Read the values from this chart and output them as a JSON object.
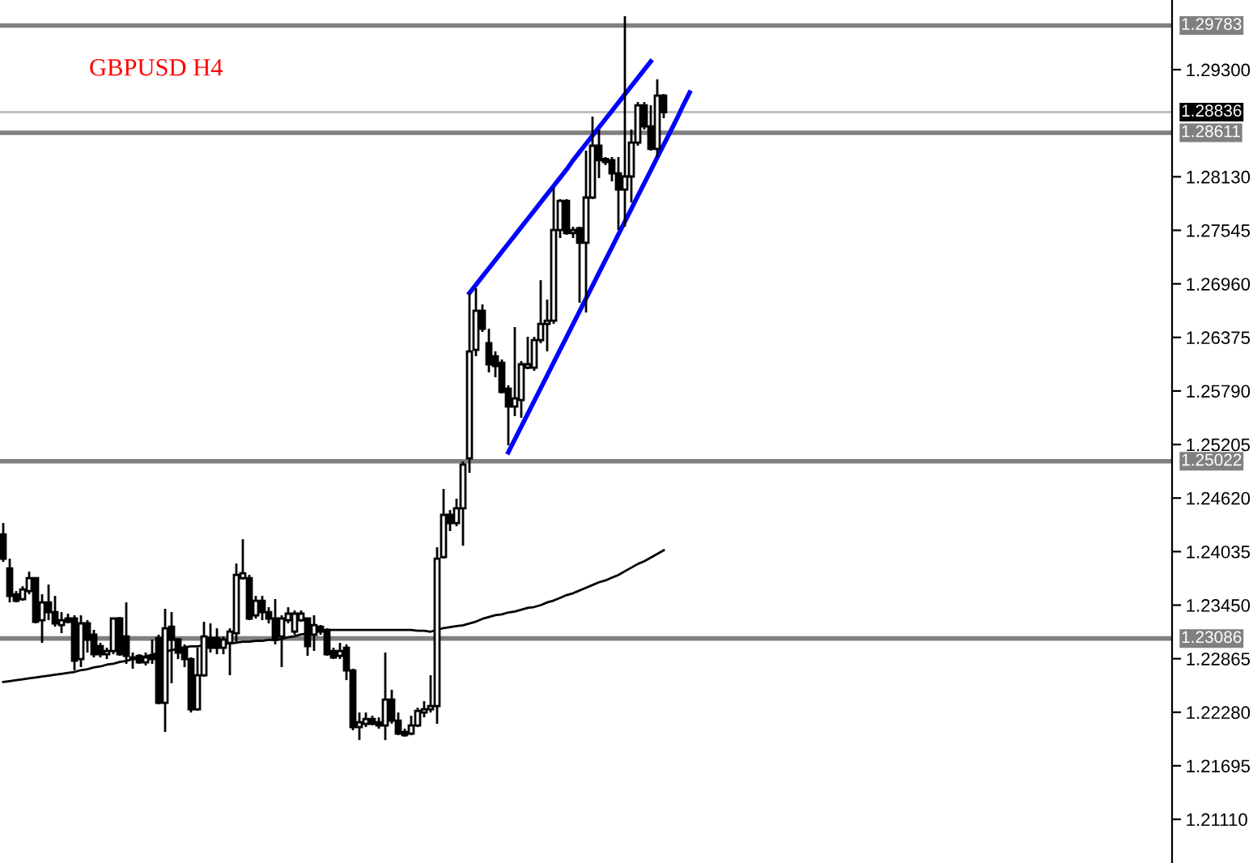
{
  "chart_data": {
    "type": "candlestick",
    "title": "GBPUSD H4",
    "categories": [
      null,
      null,
      null,
      null,
      null,
      null,
      null,
      null,
      null,
      null,
      null,
      null,
      null,
      null,
      null,
      null,
      null,
      null,
      null,
      null,
      null,
      null,
      null,
      null,
      null,
      null,
      null,
      null,
      null,
      null,
      null,
      null,
      null,
      null,
      null,
      null,
      null,
      null,
      null,
      null,
      null,
      null,
      null,
      null,
      null,
      null,
      null,
      null,
      null,
      null,
      null,
      null,
      null,
      null,
      null,
      null,
      null,
      null,
      null,
      null,
      null,
      null,
      null,
      null,
      null,
      null,
      null,
      null,
      null,
      null,
      null,
      null,
      null,
      null,
      null,
      null,
      null,
      null,
      null,
      null,
      null,
      null,
      null,
      null,
      null,
      null,
      null,
      null,
      null,
      null,
      null,
      null,
      null,
      null,
      null,
      null,
      null,
      null,
      null,
      null,
      null,
      null,
      null,
      null,
      null,
      null,
      null
    ],
    "ohlc": [
      [
        1.24223,
        1.24347,
        1.23923,
        1.23958
      ],
      [
        1.23852,
        1.23958,
        1.2348,
        1.23551
      ],
      [
        1.23569,
        1.23604,
        1.2348,
        1.23498
      ],
      [
        1.23516,
        1.23657,
        1.23498,
        1.23622
      ],
      [
        1.23604,
        1.23816,
        1.23569,
        1.23745
      ],
      [
        1.23745,
        1.23745,
        1.23251,
        1.23268
      ],
      [
        1.23286,
        1.23569,
        1.23038,
        1.2348
      ],
      [
        1.2348,
        1.23675,
        1.23286,
        1.23374
      ],
      [
        1.23374,
        1.23551,
        1.23215,
        1.23251
      ],
      [
        1.23233,
        1.23374,
        1.23144,
        1.23286
      ],
      [
        1.23304,
        1.23357,
        1.23251,
        1.23268
      ],
      [
        1.23304,
        1.23339,
        1.22737,
        1.22844
      ],
      [
        1.22861,
        1.23339,
        1.22773,
        1.23251
      ],
      [
        1.23251,
        1.23286,
        1.22932,
        1.23074
      ],
      [
        1.23127,
        1.2318,
        1.22879,
        1.22914
      ],
      [
        1.23003,
        1.23038,
        1.22879,
        1.22914
      ],
      [
        1.22914,
        1.22985,
        1.22861,
        1.2295
      ],
      [
        1.2295,
        1.23304,
        1.22914,
        1.23304
      ],
      [
        1.23304,
        1.23321,
        1.22897,
        1.22914
      ],
      [
        1.23109,
        1.2348,
        1.22808,
        1.22897
      ],
      [
        1.22879,
        1.22932,
        1.22755,
        1.22861
      ],
      [
        1.22897,
        1.22914,
        1.22808,
        1.22826
      ],
      [
        1.22826,
        1.22932,
        1.22791,
        1.22879
      ],
      [
        1.22897,
        1.23074,
        1.22808,
        1.22861
      ],
      [
        1.23091,
        1.23127,
        1.22366,
        1.22384
      ],
      [
        1.22384,
        1.2341,
        1.22065,
        1.23197
      ],
      [
        1.23215,
        1.23374,
        1.22596,
        1.23074
      ],
      [
        1.23074,
        1.23091,
        1.22861,
        1.22932
      ],
      [
        1.22985,
        1.23021,
        1.22773,
        1.22861
      ],
      [
        1.22861,
        1.22879,
        1.22277,
        1.22313
      ],
      [
        1.22313,
        1.22985,
        1.22295,
        1.22684
      ],
      [
        1.22684,
        1.23268,
        1.22667,
        1.23109
      ],
      [
        1.23091,
        1.23251,
        1.22932,
        1.22985
      ],
      [
        1.23091,
        1.23197,
        1.22914,
        1.22985
      ],
      [
        1.22985,
        1.23109,
        1.22914,
        1.23074
      ],
      [
        1.23038,
        1.23197,
        1.22684,
        1.23162
      ],
      [
        1.23144,
        1.23905,
        1.23038,
        1.23781
      ],
      [
        1.23745,
        1.2417,
        1.23728,
        1.23799
      ],
      [
        1.23745,
        1.23781,
        1.23286,
        1.23304
      ],
      [
        1.23339,
        1.23551,
        1.23304,
        1.23498
      ],
      [
        1.23498,
        1.23551,
        1.23286,
        1.23374
      ],
      [
        1.23374,
        1.23427,
        1.23251,
        1.23304
      ],
      [
        1.23304,
        1.23516,
        1.23021,
        1.23074
      ],
      [
        1.23109,
        1.23339,
        1.22773,
        1.23304
      ],
      [
        1.23286,
        1.23427,
        1.23251,
        1.23357
      ],
      [
        1.23162,
        1.23392,
        1.23127,
        1.23357
      ],
      [
        1.23286,
        1.23392,
        1.23268,
        1.23357
      ],
      [
        1.23304,
        1.23304,
        1.22897,
        1.23003
      ],
      [
        1.23127,
        1.23339,
        1.2295,
        1.23233
      ],
      [
        1.23215,
        1.23233,
        1.23127,
        1.23162
      ],
      [
        1.2318,
        1.23197,
        1.22897,
        1.22914
      ],
      [
        1.2295,
        1.22985,
        1.22861,
        1.22879
      ],
      [
        1.22897,
        1.23038,
        1.22861,
        1.2295
      ],
      [
        1.22985,
        1.23021,
        1.22631,
        1.22737
      ],
      [
        1.22737,
        1.22755,
        1.22083,
        1.22118
      ],
      [
        1.22118,
        1.22277,
        1.21976,
        1.22171
      ],
      [
        1.22154,
        1.22277,
        1.22118,
        1.22207
      ],
      [
        1.22207,
        1.22242,
        1.22136,
        1.22154
      ],
      [
        1.22171,
        1.22224,
        1.221,
        1.22136
      ],
      [
        1.22136,
        1.22932,
        1.21976,
        1.22419
      ],
      [
        1.22419,
        1.22525,
        1.22154,
        1.22189
      ],
      [
        1.22189,
        1.22277,
        1.22029,
        1.22047
      ],
      [
        1.22065,
        1.221,
        1.22012,
        1.22029
      ],
      [
        1.22047,
        1.22242,
        1.22029,
        1.22136
      ],
      [
        1.22136,
        1.2233,
        1.22118,
        1.22295
      ],
      [
        1.22277,
        1.22401,
        1.22224,
        1.22313
      ],
      [
        1.22313,
        1.22684,
        1.22277,
        1.22348
      ],
      [
        1.22348,
        1.24082,
        1.22154,
        1.23958
      ],
      [
        1.23976,
        1.24719,
        1.23958,
        1.24436
      ],
      [
        1.24436,
        1.24489,
        1.24259,
        1.24347
      ],
      [
        1.24347,
        1.24613,
        1.24312,
        1.24507
      ],
      [
        1.24507,
        1.2502,
        1.241,
        1.24985
      ],
      [
        1.25055,
        1.26859,
        1.24896,
        1.26222
      ],
      [
        1.2624,
        1.26912,
        1.26169,
        1.26665
      ],
      [
        1.26665,
        1.26735,
        1.26435,
        1.2647
      ],
      [
        1.26311,
        1.2647,
        1.25992,
        1.26081
      ],
      [
        1.26169,
        1.26222,
        1.25939,
        1.26063
      ],
      [
        1.26098,
        1.26134,
        1.25762,
        1.2578
      ],
      [
        1.25815,
        1.25851,
        1.25196,
        1.25621
      ],
      [
        1.25621,
        1.26488,
        1.25515,
        1.25709
      ],
      [
        1.25691,
        1.26116,
        1.25497,
        1.26081
      ],
      [
        1.26045,
        1.26382,
        1.26027,
        1.26081
      ],
      [
        1.26045,
        1.26382,
        1.2601,
        1.26346
      ],
      [
        1.26346,
        1.27,
        1.26311,
        1.26523
      ],
      [
        1.26523,
        1.26788,
        1.26222,
        1.26558
      ],
      [
        1.26558,
        1.28009,
        1.26523,
        1.27549
      ],
      [
        1.27549,
        1.27885,
        1.27461,
        1.27867
      ],
      [
        1.27867,
        1.27885,
        1.27496,
        1.27514
      ],
      [
        1.27514,
        1.27584,
        1.27461,
        1.27549
      ],
      [
        1.27567,
        1.27584,
        1.26753,
        1.27408
      ],
      [
        1.27408,
        1.28416,
        1.26647,
        1.27903
      ],
      [
        1.27903,
        1.28787,
        1.27885,
        1.28469
      ],
      [
        1.28469,
        1.28646,
        1.28115,
        1.2831
      ],
      [
        1.28325,
        1.28345,
        1.28257,
        1.28292
      ],
      [
        1.2831,
        1.28345,
        1.2808,
        1.28168
      ],
      [
        1.28168,
        1.28345,
        1.27549,
        1.27991
      ],
      [
        1.27991,
        1.29884,
        1.27584,
        1.28133
      ],
      [
        1.28133,
        1.28646,
        1.2785,
        1.28504
      ],
      [
        1.28504,
        1.28946,
        1.28469,
        1.28911
      ],
      [
        1.28911,
        1.28946,
        1.28646,
        1.28681
      ],
      [
        1.28681,
        1.28911,
        1.28416,
        1.28434
      ],
      [
        1.28434,
        1.29194,
        1.28345,
        1.29017
      ],
      [
        1.29017,
        1.29035,
        1.2877,
        1.28836
      ],
      null,
      null,
      null,
      null
    ],
    "series": [
      {
        "type": "line",
        "color": "#000000",
        "values": [
          1.2261,
          1.2262,
          1.2263,
          1.2264,
          1.2265,
          1.2266,
          1.2267,
          1.2268,
          1.2269,
          1.227,
          1.2271,
          1.2272,
          1.2274,
          1.2275,
          1.2277,
          1.2278,
          1.228,
          1.2281,
          1.2283,
          1.2284,
          1.2286,
          1.2288,
          1.2289,
          1.2291,
          1.2293,
          1.2294,
          1.2296,
          1.2297,
          1.2299,
          1.23,
          1.23,
          1.2301,
          1.2301,
          1.2302,
          1.2303,
          1.2303,
          1.2304,
          1.2305,
          1.2305,
          1.2306,
          1.2306,
          1.2307,
          1.2307,
          1.2308,
          1.231,
          1.2311,
          1.2313,
          1.2314,
          1.2315,
          1.2317,
          1.2318,
          1.2318,
          1.2318,
          1.2318,
          1.2318,
          1.2318,
          1.2318,
          1.2318,
          1.2318,
          1.2318,
          1.2318,
          1.2318,
          1.2318,
          1.2318,
          1.2317,
          1.2317,
          1.2316,
          1.2318,
          1.232,
          1.2321,
          1.2322,
          1.2323,
          1.2325,
          1.2327,
          1.233,
          1.2332,
          1.2334,
          1.2335,
          1.2337,
          1.2338,
          1.234,
          1.2342,
          1.2343,
          1.2345,
          1.2348,
          1.235,
          1.2353,
          1.2356,
          1.2358,
          1.2361,
          1.2364,
          1.2367,
          1.237,
          1.2372,
          1.2375,
          1.2378,
          1.2382,
          1.2386,
          1.239,
          1.2393,
          1.2397,
          1.2401,
          1.2405,
          null,
          null,
          null,
          null
        ]
      },
      {
        "type": "line",
        "color": "#0000ff",
        "values": [
          null,
          null,
          null,
          null,
          null,
          null,
          null,
          null,
          null,
          null,
          null,
          null,
          null,
          null,
          null,
          null,
          null,
          null,
          null,
          null,
          null,
          null,
          null,
          null,
          null,
          null,
          null,
          null,
          null,
          null,
          null,
          null,
          null,
          null,
          null,
          null,
          null,
          null,
          null,
          null,
          null,
          null,
          null,
          null,
          null,
          null,
          null,
          null,
          null,
          null,
          null,
          null,
          null,
          null,
          null,
          null,
          null,
          null,
          null,
          null,
          null,
          null,
          null,
          null,
          null,
          null,
          null,
          null,
          null,
          null,
          null,
          null,
          1.2686,
          1.2695,
          1.2704,
          1.2713,
          1.2722,
          1.2731,
          1.274,
          1.2749,
          1.2758,
          1.2767,
          1.2776,
          1.2785,
          1.2794,
          1.2803,
          1.2812,
          1.2821,
          1.2831,
          1.284,
          1.2849,
          1.2858,
          1.2867,
          1.2876,
          1.2885,
          1.2894,
          1.2903,
          1.2912,
          1.2921,
          1.293,
          1.2939,
          null,
          null,
          null,
          null,
          null,
          null
        ]
      },
      {
        "type": "line",
        "color": "#0000ff",
        "values": [
          null,
          null,
          null,
          null,
          null,
          null,
          null,
          null,
          null,
          null,
          null,
          null,
          null,
          null,
          null,
          null,
          null,
          null,
          null,
          null,
          null,
          null,
          null,
          null,
          null,
          null,
          null,
          null,
          null,
          null,
          null,
          null,
          null,
          null,
          null,
          null,
          null,
          null,
          null,
          null,
          null,
          null,
          null,
          null,
          null,
          null,
          null,
          null,
          null,
          null,
          null,
          null,
          null,
          null,
          null,
          null,
          null,
          null,
          null,
          null,
          null,
          null,
          null,
          null,
          null,
          null,
          null,
          null,
          null,
          null,
          null,
          null,
          null,
          null,
          null,
          null,
          null,
          null,
          1.2512,
          1.2526,
          1.254,
          1.2554,
          1.2568,
          1.2582,
          1.2596,
          1.261,
          1.2624,
          1.2638,
          1.2652,
          1.2666,
          1.268,
          1.2694,
          1.2708,
          1.2722,
          1.2736,
          1.275,
          1.2764,
          1.2778,
          1.2792,
          1.2806,
          1.282,
          1.2834,
          1.2848,
          1.2862,
          1.2876,
          1.2891,
          1.2905
        ]
      }
    ],
    "ylim": [
      1.20633,
      1.30061
    ],
    "yticks": [
      {
        "value": 1.2111,
        "label": "1.21110"
      },
      {
        "value": 1.21695,
        "label": "1.21695"
      },
      {
        "value": 1.2228,
        "label": "1.22280"
      },
      {
        "value": 1.22865,
        "label": "1.22865"
      },
      {
        "value": 1.2345,
        "label": "1.23450"
      },
      {
        "value": 1.24035,
        "label": "1.24035"
      },
      {
        "value": 1.2462,
        "label": "1.24620"
      },
      {
        "value": 1.25205,
        "label": "1.25205"
      },
      {
        "value": 1.2579,
        "label": "1.25790"
      },
      {
        "value": 1.26375,
        "label": "1.26375"
      },
      {
        "value": 1.2696,
        "label": "1.26960"
      },
      {
        "value": 1.27545,
        "label": "1.27545"
      },
      {
        "value": 1.2813,
        "label": "1.28130"
      },
      {
        "value": 1.293,
        "label": "1.29300"
      }
    ],
    "ref_lines": [
      {
        "axis": "y",
        "value": 1.29783,
        "label": "1.29783",
        "color": "#808080"
      },
      {
        "axis": "y",
        "value": 1.28836,
        "label": "1.28836",
        "color": "#c0c0c0"
      },
      {
        "axis": "y",
        "value": 1.28611,
        "label": "1.28611",
        "color": "#808080"
      },
      {
        "axis": "y",
        "value": 1.25022,
        "label": "1.25022",
        "color": "#808080"
      },
      {
        "axis": "y",
        "value": 1.23086,
        "label": "1.23086",
        "color": "#808080"
      }
    ],
    "tick_labels": "y",
    "grid": false,
    "legend": false
  }
}
